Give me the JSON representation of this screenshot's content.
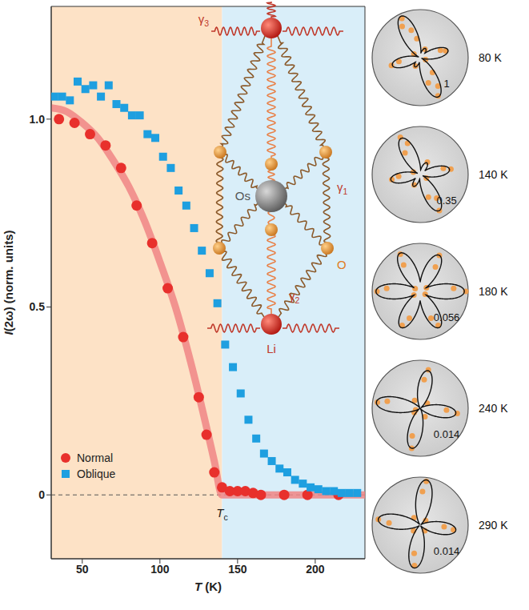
{
  "chart_data": {
    "type": "scatter",
    "xlabel": "T (K)",
    "ylabel": "I(2ω) (norm. units)",
    "xlim": [
      30,
      232
    ],
    "xticks": [
      50,
      100,
      150,
      200
    ],
    "ylim": [
      -0.17,
      1.3
    ],
    "yticks": [
      0,
      0.5,
      {
        "value": 1,
        "label": "1.0"
      }
    ],
    "legend": "lower left",
    "series": [
      {
        "name": "Normal",
        "color": "#e8302c",
        "marker": "circle",
        "x": [
          35,
          45,
          55,
          65,
          75,
          85,
          95,
          105,
          115,
          125,
          130,
          135,
          140,
          145,
          150,
          155,
          160,
          165,
          180,
          195,
          215
        ],
        "values": [
          1,
          0.99,
          0.96,
          0.93,
          0.87,
          0.77,
          0.67,
          0.55,
          0.42,
          0.26,
          0.16,
          0.06,
          0.02,
          0.01,
          0.01,
          0.01,
          0.005,
          0,
          0,
          0,
          0
        ]
      },
      {
        "name": "Oblique",
        "color": "#1e9fe0",
        "marker": "square",
        "x": [
          32,
          37,
          42,
          47,
          52,
          57,
          62,
          67,
          72,
          77,
          82,
          87,
          92,
          97,
          102,
          107,
          112,
          117,
          122,
          127,
          132,
          137,
          142,
          147,
          152,
          157,
          162,
          167,
          172,
          177,
          182,
          187,
          192,
          197,
          202,
          207,
          212,
          217,
          222,
          227
        ],
        "values": [
          1.06,
          1.06,
          1.05,
          1.1,
          1.08,
          1.09,
          1.06,
          1.09,
          1.04,
          1.03,
          1.01,
          1.01,
          0.96,
          0.95,
          0.9,
          0.87,
          0.81,
          0.77,
          0.71,
          0.65,
          0.59,
          0.51,
          0.4,
          0.34,
          0.27,
          0.2,
          0.15,
          0.11,
          0.09,
          0.07,
          0.06,
          0.04,
          0.03,
          0.02,
          0.015,
          0.01,
          0.01,
          0.005,
          0.005,
          0.005
        ]
      },
      {
        "type": "line",
        "color": "#f08585",
        "line_style": "solid",
        "x": [
          30,
          40,
          50,
          60,
          70,
          80,
          90,
          100,
          110,
          120,
          130,
          135,
          140,
          232
        ],
        "values": [
          1.03,
          1.02,
          0.99,
          0.95,
          0.89,
          0.82,
          0.73,
          0.62,
          0.5,
          0.35,
          0.18,
          0.09,
          0,
          0
        ]
      }
    ],
    "regions": [
      {
        "x": [
          30,
          140
        ],
        "color": "#fde2c6"
      },
      {
        "x": [
          140,
          232
        ],
        "color": "#d9eef9"
      }
    ],
    "zero_line": {
      "y": 0,
      "line_style": "dashed"
    },
    "annotations": [
      {
        "text": "Tc",
        "x": 140
      }
    ]
  },
  "inset": {
    "li": "Li",
    "os": "Os",
    "o": "O",
    "gamma1": "γ1",
    "gamma2": "γ2",
    "gamma3": "γ3"
  },
  "polar_plots": [
    {
      "label": "80 K",
      "scale": 1,
      "lobes": [
        [
          115,
          0.95
        ],
        [
          -65,
          0.9
        ],
        [
          15,
          0.6
        ],
        [
          195,
          0.6
        ],
        [
          60,
          0.22
        ],
        [
          240,
          0.22
        ]
      ],
      "points": [
        [
          115,
          0.9
        ],
        [
          120,
          0.75
        ],
        [
          108,
          0.6
        ],
        [
          -65,
          0.88
        ],
        [
          -58,
          0.7
        ],
        [
          -72,
          0.55
        ],
        [
          15,
          0.55
        ],
        [
          20,
          0.45
        ],
        [
          195,
          0.62
        ],
        [
          190,
          0.45
        ],
        [
          60,
          0.2
        ],
        [
          240,
          0.2
        ],
        [
          150,
          0.15
        ],
        [
          -20,
          0.12
        ],
        [
          100,
          0.4
        ],
        [
          -50,
          0.4
        ]
      ]
    },
    {
      "label": "140 K",
      "scale": 0.35,
      "lobes": [
        [
          118,
          0.85
        ],
        [
          -62,
          0.85
        ],
        [
          10,
          0.62
        ],
        [
          190,
          0.62
        ],
        [
          60,
          0.28
        ],
        [
          240,
          0.28
        ]
      ],
      "points": [
        [
          118,
          0.88
        ],
        [
          112,
          0.7
        ],
        [
          125,
          0.55
        ],
        [
          -62,
          0.85
        ],
        [
          -55,
          0.6
        ],
        [
          -70,
          0.5
        ],
        [
          10,
          0.65
        ],
        [
          15,
          0.5
        ],
        [
          190,
          0.6
        ],
        [
          185,
          0.45
        ],
        [
          60,
          0.3
        ],
        [
          240,
          0.25
        ],
        [
          160,
          0.15
        ],
        [
          -30,
          0.15
        ]
      ]
    },
    {
      "label": "180 K",
      "scale": 0.056,
      "lobes": [
        [
          0,
          0.92
        ],
        [
          180,
          0.92
        ],
        [
          62,
          0.85
        ],
        [
          242,
          0.85
        ],
        [
          118,
          0.9
        ],
        [
          298,
          0.85
        ]
      ],
      "points": [
        [
          0,
          0.95
        ],
        [
          5,
          0.7
        ],
        [
          180,
          0.9
        ],
        [
          175,
          0.7
        ],
        [
          62,
          0.85
        ],
        [
          58,
          0.6
        ],
        [
          242,
          0.8
        ],
        [
          248,
          0.6
        ],
        [
          118,
          0.88
        ],
        [
          122,
          0.65
        ],
        [
          298,
          0.8
        ],
        [
          292,
          0.6
        ],
        [
          30,
          0.15
        ],
        [
          150,
          0.12
        ],
        [
          210,
          0.15
        ],
        [
          330,
          0.12
        ]
      ]
    },
    {
      "label": "240 K",
      "scale": 0.014,
      "lobes": [
        [
          172,
          0.92
        ],
        [
          -8,
          0.75
        ],
        [
          78,
          0.8
        ],
        [
          258,
          0.85
        ]
      ],
      "points": [
        [
          172,
          0.9
        ],
        [
          168,
          0.7
        ],
        [
          -8,
          0.78
        ],
        [
          -4,
          0.55
        ],
        [
          78,
          0.82
        ],
        [
          82,
          0.6
        ],
        [
          258,
          0.85
        ],
        [
          254,
          0.6
        ],
        [
          125,
          0.2
        ],
        [
          215,
          0.15
        ],
        [
          35,
          0.18
        ],
        [
          300,
          0.2
        ],
        [
          200,
          0.1
        ]
      ]
    },
    {
      "label": "290 K",
      "scale": 0.014,
      "lobes": [
        [
          82,
          0.95
        ],
        [
          262,
          0.9
        ],
        [
          172,
          0.88
        ],
        [
          -8,
          0.75
        ]
      ],
      "points": [
        [
          82,
          0.92
        ],
        [
          86,
          0.7
        ],
        [
          262,
          0.85
        ],
        [
          258,
          0.6
        ],
        [
          172,
          0.88
        ],
        [
          176,
          0.65
        ],
        [
          -8,
          0.7
        ],
        [
          -4,
          0.5
        ],
        [
          130,
          0.2
        ],
        [
          40,
          0.15
        ],
        [
          220,
          0.18
        ],
        [
          310,
          0.15
        ]
      ]
    }
  ]
}
